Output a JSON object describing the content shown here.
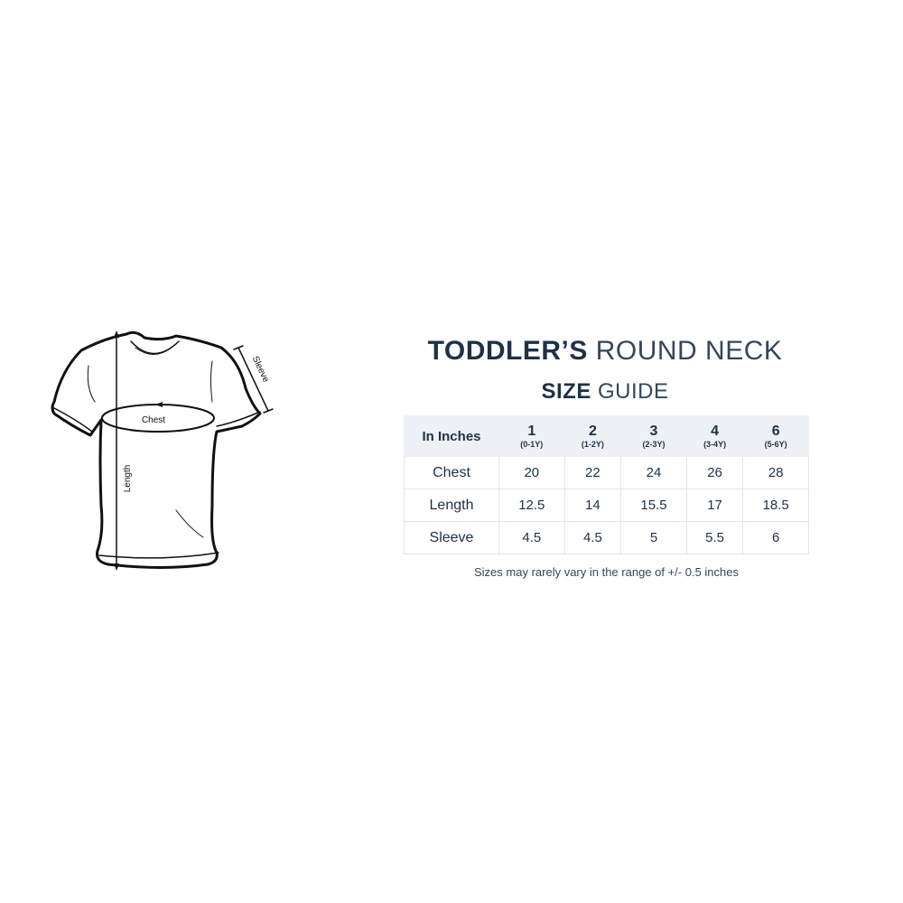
{
  "diagram": {
    "chest_label": "Chest",
    "length_label": "Length",
    "sleeve_label": "Sleeve"
  },
  "title": {
    "bold": "TODDLER’S",
    "light": "ROUND NECK"
  },
  "subtitle": {
    "bold": "SIZE",
    "light": "GUIDE"
  },
  "table": {
    "corner": "In Inches",
    "sizes": [
      {
        "size": "1",
        "age": "(0-1Y)"
      },
      {
        "size": "2",
        "age": "(1-2Y)"
      },
      {
        "size": "3",
        "age": "(2-3Y)"
      },
      {
        "size": "4",
        "age": "(3-4Y)"
      },
      {
        "size": "6",
        "age": "(5-6Y)"
      }
    ],
    "rows": [
      {
        "label": "Chest",
        "values": [
          "20",
          "22",
          "24",
          "26",
          "28"
        ]
      },
      {
        "label": "Length",
        "values": [
          "12.5",
          "14",
          "15.5",
          "17",
          "18.5"
        ]
      },
      {
        "label": "Sleeve",
        "values": [
          "4.5",
          "4.5",
          "5",
          "5.5",
          "6"
        ]
      }
    ]
  },
  "note": "Sizes may rarely vary in the range of +/- 0.5 inches",
  "colors": {
    "text": "#1e3148",
    "header_bg": "#edf1f5",
    "border": "#dfe5ec"
  }
}
